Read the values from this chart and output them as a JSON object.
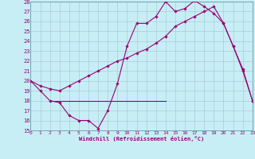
{
  "xlabel": "Windchill (Refroidissement éolien,°C)",
  "bg_color": "#c8eef5",
  "line_color": "#990077",
  "grid_color": "#a8ccd8",
  "xlim": [
    0,
    23
  ],
  "ylim": [
    15,
    28
  ],
  "xticks": [
    0,
    1,
    2,
    3,
    4,
    5,
    6,
    7,
    8,
    9,
    10,
    11,
    12,
    13,
    14,
    15,
    16,
    17,
    18,
    19,
    20,
    21,
    22,
    23
  ],
  "yticks": [
    15,
    16,
    17,
    18,
    19,
    20,
    21,
    22,
    23,
    24,
    25,
    26,
    27,
    28
  ],
  "series1_x": [
    0,
    1,
    2,
    3,
    4,
    5,
    6,
    7,
    8,
    9,
    10,
    11,
    12,
    13,
    14,
    15,
    16,
    17,
    18,
    19,
    20,
    21,
    22,
    23
  ],
  "series1_y": [
    20.0,
    19.0,
    18.0,
    17.8,
    16.5,
    16.0,
    16.0,
    15.2,
    17.0,
    19.7,
    23.5,
    25.8,
    25.8,
    26.5,
    28.0,
    27.0,
    27.3,
    28.1,
    27.5,
    26.8,
    25.8,
    23.5,
    21.0,
    18.0
  ],
  "series2_x": [
    2,
    3,
    4,
    5,
    6,
    7,
    8,
    9,
    10,
    11,
    12,
    13,
    14
  ],
  "series2_y": [
    18.0,
    18.0,
    18.0,
    18.0,
    18.0,
    18.0,
    18.0,
    18.0,
    18.0,
    18.0,
    18.0,
    18.0,
    18.0
  ],
  "series3_x": [
    0,
    1,
    2,
    3,
    4,
    5,
    6,
    7,
    8,
    9,
    10,
    11,
    12,
    13,
    14,
    15,
    16,
    17,
    18,
    19,
    20,
    21,
    22,
    23
  ],
  "series3_y": [
    20.0,
    19.5,
    19.2,
    19.0,
    19.5,
    20.0,
    20.5,
    21.0,
    21.5,
    22.0,
    22.3,
    22.8,
    23.2,
    23.8,
    24.5,
    25.5,
    26.0,
    26.5,
    27.0,
    27.5,
    25.8,
    23.5,
    21.2,
    18.0
  ]
}
